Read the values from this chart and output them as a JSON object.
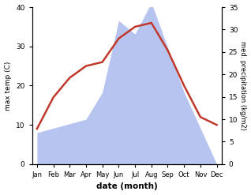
{
  "months": [
    "Jan",
    "Feb",
    "Mar",
    "Apr",
    "May",
    "Jun",
    "Jul",
    "Aug",
    "Sep",
    "Oct",
    "Nov",
    "Dec"
  ],
  "temperature": [
    9,
    17,
    22,
    25,
    26,
    32,
    35,
    36,
    29,
    20,
    12,
    10
  ],
  "precipitation": [
    7,
    8,
    9,
    10,
    16,
    32,
    29,
    36,
    26,
    16,
    8,
    0
  ],
  "temp_color": "#c0392b",
  "precip_color": "#b8c4f0",
  "ylim_temp": [
    0,
    40
  ],
  "ylim_precip": [
    0,
    35
  ],
  "temp_yticks": [
    0,
    10,
    20,
    30,
    40
  ],
  "precip_yticks": [
    0,
    5,
    10,
    15,
    20,
    25,
    30,
    35
  ],
  "ylabel_left": "max temp (C)",
  "ylabel_right": "med. precipitation (kg/m2)",
  "xlabel": "date (month)",
  "temp_linewidth": 1.8,
  "background_color": "#ffffff"
}
